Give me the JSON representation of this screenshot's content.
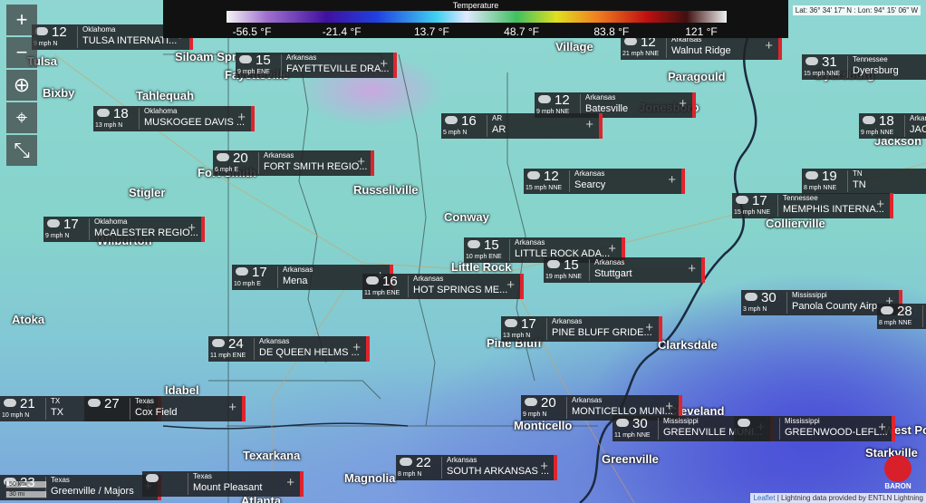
{
  "legend": {
    "title": "Temperature",
    "labels": [
      "-56.5 °F",
      "-21.4 °F",
      "13.7 °F",
      "48.7 °F",
      "83.8 °F",
      "121 °F"
    ]
  },
  "coords": "Lat: 36° 34' 17\" N : Lon: 94° 15' 06\" W",
  "controls": [
    "+",
    "−",
    "⊕",
    "⌖",
    "⤡"
  ],
  "stations": [
    {
      "temp": "12",
      "wind": "9 mph N",
      "state": "Oklahoma",
      "name": "TULSA INTERNATI..."
    },
    {
      "temp": "15",
      "wind": "9 mph ENE",
      "state": "Arkansas",
      "name": "FAYETTEVILLE DRA..."
    },
    {
      "temp": "12",
      "wind": "21 mph NNE",
      "state": "Arkansas",
      "name": "Walnut Ridge"
    },
    {
      "temp": "31",
      "wind": "15 mph NNE",
      "state": "Tennessee",
      "name": "Dyersburg"
    },
    {
      "temp": "18",
      "wind": "13 mph N",
      "state": "Oklahoma",
      "name": "MUSKOGEE DAVIS ..."
    },
    {
      "temp": "12",
      "wind": "9 mph NNE",
      "state": "Arkansas",
      "name": "Batesville"
    },
    {
      "temp": "16",
      "wind": "5 mph N",
      "state": "AR",
      "name": "AR"
    },
    {
      "temp": "18",
      "wind": "9 mph NNE",
      "state": "Arkansas",
      "name": "JAC"
    },
    {
      "temp": "20",
      "wind": "6 mph E",
      "state": "Arkansas",
      "name": "FORT SMITH REGIO..."
    },
    {
      "temp": "12",
      "wind": "15 mph NNE",
      "state": "Arkansas",
      "name": "Searcy"
    },
    {
      "temp": "19",
      "wind": "8 mph NNE",
      "state": "TN",
      "name": "TN"
    },
    {
      "temp": "17",
      "wind": "15 mph NNE",
      "state": "Tennessee",
      "name": "MEMPHIS INTERNA..."
    },
    {
      "temp": "17",
      "wind": "9 mph N",
      "state": "Oklahoma",
      "name": "MCALESTER REGIO..."
    },
    {
      "temp": "15",
      "wind": "10 mph ENE",
      "state": "Arkansas",
      "name": "LITTLE ROCK ADA..."
    },
    {
      "temp": "15",
      "wind": "19 mph NNE",
      "state": "Arkansas",
      "name": "Stuttgart"
    },
    {
      "temp": "17",
      "wind": "10 mph E",
      "state": "Arkansas",
      "name": "Mena"
    },
    {
      "temp": "16",
      "wind": "11 mph ENE",
      "state": "Arkansas",
      "name": "HOT SPRINGS ME..."
    },
    {
      "temp": "30",
      "wind": "3 mph N",
      "state": "Mississippi",
      "name": "Panola County Airp..."
    },
    {
      "temp": "28",
      "wind": "8 mph NNE",
      "state": "",
      "name": ""
    },
    {
      "temp": "17",
      "wind": "13 mph N",
      "state": "Arkansas",
      "name": "PINE BLUFF GRIDE..."
    },
    {
      "temp": "24",
      "wind": "11 mph ENE",
      "state": "Arkansas",
      "name": "DE QUEEN HELMS ..."
    },
    {
      "temp": "21",
      "wind": "10 mph N",
      "state": "TX",
      "name": "TX"
    },
    {
      "temp": "27",
      "wind": "",
      "state": "Texas",
      "name": "Cox Field"
    },
    {
      "temp": "20",
      "wind": "9 mph N",
      "state": "Arkansas",
      "name": "MONTICELLO MUNI..."
    },
    {
      "temp": "30",
      "wind": "11 mph NNE",
      "state": "Mississippi",
      "name": "GREENVILLE MUNI..."
    },
    {
      "temp": "",
      "wind": "",
      "state": "Mississippi",
      "name": "GREENWOOD-LEFL..."
    },
    {
      "temp": "22",
      "wind": "8 mph N",
      "state": "Arkansas",
      "name": "SOUTH ARKANSAS ..."
    },
    {
      "temp": "23",
      "wind": "",
      "state": "Texas",
      "name": "Greenville / Majors"
    },
    {
      "temp": "",
      "wind": "",
      "state": "Texas",
      "name": "Mount Pleasant"
    }
  ],
  "cities": [
    "Tulsa",
    "Siloam Spr",
    "Fayetteville",
    "Village",
    "Paragould",
    "Dyersburg",
    "Bixby",
    "Tahlequah",
    "Jonesboro",
    "Jackson",
    "Fort Smith",
    "Stigler",
    "Russellville",
    "Conway",
    "Collierville",
    "Wilburton",
    "Little Rock",
    "Atoka",
    "Pine Bluff",
    "Clarksdale",
    "Idabel",
    "Monticello",
    "Cleveland",
    "West Point",
    "Greenville",
    "Texarkana",
    "Magnolia",
    "Starkville",
    "Atlanta"
  ],
  "scale": [
    "50 km",
    "30 mi"
  ],
  "attribution": {
    "link": "Leaflet",
    "text": " | Lightning data provided by ENTLN Lightning"
  },
  "logo": "BARON"
}
